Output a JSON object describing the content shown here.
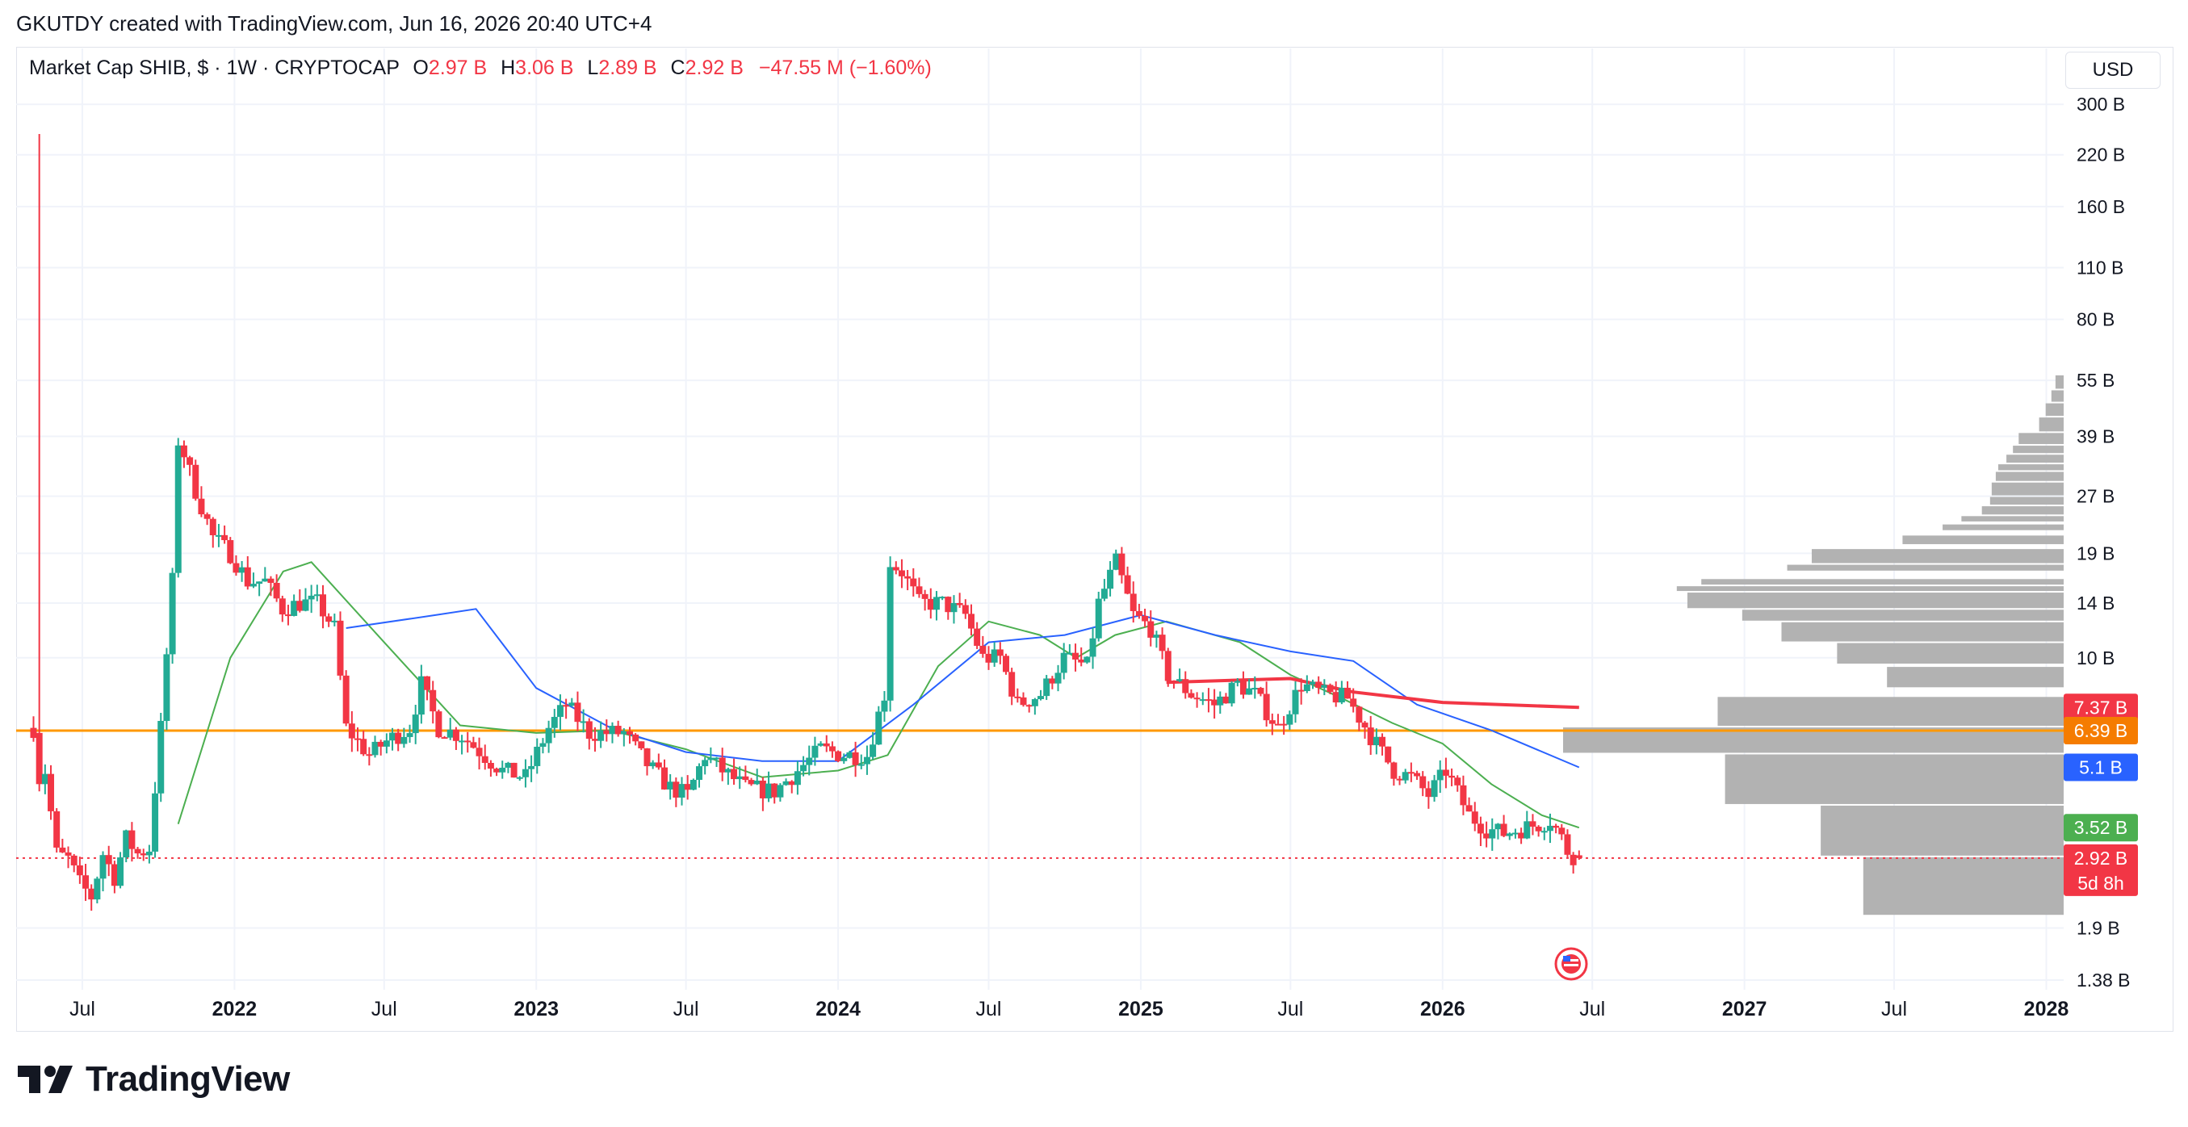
{
  "header": {
    "attribution": "GKUTDY created with TradingView.com, Jun 16, 2026 20:40 UTC+4"
  },
  "legend": {
    "symbol": "Market Cap SHIB, $ · 1W · CRYPTOCAP",
    "o_label": "O",
    "o_value": "2.97 B",
    "h_label": "H",
    "h_value": "3.06 B",
    "l_label": "L",
    "l_value": "2.89 B",
    "c_label": "C",
    "c_value": "2.92 B",
    "change": "−47.55 M (−1.60%)"
  },
  "currency_button": "USD",
  "brand": {
    "name": "TradingView"
  },
  "colors": {
    "up": "#22ab94",
    "down": "#f23645",
    "ma_short": "#4caf50",
    "ma_mid": "#2962ff",
    "ma_long": "#f23645",
    "hline": "#ff9800",
    "volume_profile": "#b2b2b2",
    "grid": "#f0f3fa"
  },
  "chart_data": {
    "type": "candlestick",
    "title": "Market Cap SHIB, $ · 1W · CRYPTOCAP",
    "y_scale": "log",
    "ylim": [
      1.3,
      330
    ],
    "y_unit": "B USD",
    "y_ticks": [
      "300 B",
      "220 B",
      "160 B",
      "110 B",
      "80 B",
      "55 B",
      "39 B",
      "27 B",
      "19 B",
      "14 B",
      "10 B",
      "1.9 B",
      "1.38 B"
    ],
    "y_tick_values": [
      300,
      220,
      160,
      110,
      80,
      55,
      39,
      27,
      19,
      14,
      10,
      1.9,
      1.38
    ],
    "x_ticks": [
      "Jul",
      "2022",
      "Jul",
      "2023",
      "Jul",
      "2024",
      "Jul",
      "2025",
      "Jul",
      "2026",
      "Jul",
      "2027",
      "Jul",
      "2028"
    ],
    "x_tick_dates": [
      "2021-07-01",
      "2022-01-01",
      "2022-07-01",
      "2023-01-01",
      "2023-07-01",
      "2024-01-01",
      "2024-07-01",
      "2025-01-01",
      "2025-07-01",
      "2026-01-01",
      "2026-07-01",
      "2027-01-01",
      "2027-07-01",
      "2028-01-01"
    ],
    "x_bold": [
      false,
      true,
      false,
      true,
      false,
      true,
      false,
      true,
      false,
      true,
      false,
      true,
      false,
      true
    ],
    "x_range": [
      "2021-04-12",
      "2028-01-22"
    ],
    "price_series": [
      {
        "date": "2021-05-03",
        "value": 6.5
      },
      {
        "date": "2021-05-10",
        "value": 250
      },
      {
        "date": "2021-05-17",
        "value": 5.0
      },
      {
        "date": "2021-05-31",
        "value": 3.0
      },
      {
        "date": "2021-06-14",
        "value": 2.9
      },
      {
        "date": "2021-06-28",
        "value": 2.5
      },
      {
        "date": "2021-07-12",
        "value": 2.3
      },
      {
        "date": "2021-07-26",
        "value": 3.0
      },
      {
        "date": "2021-08-09",
        "value": 2.6
      },
      {
        "date": "2021-08-23",
        "value": 3.3
      },
      {
        "date": "2021-09-06",
        "value": 3.0
      },
      {
        "date": "2021-09-20",
        "value": 3.1
      },
      {
        "date": "2021-10-04",
        "value": 6.5
      },
      {
        "date": "2021-10-18",
        "value": 16
      },
      {
        "date": "2021-10-25",
        "value": 38
      },
      {
        "date": "2021-11-01",
        "value": 35
      },
      {
        "date": "2021-11-15",
        "value": 28
      },
      {
        "date": "2021-12-06",
        "value": 21
      },
      {
        "date": "2021-12-27",
        "value": 19
      },
      {
        "date": "2022-01-17",
        "value": 16
      },
      {
        "date": "2022-02-07",
        "value": 16
      },
      {
        "date": "2022-02-28",
        "value": 13.5
      },
      {
        "date": "2022-03-21",
        "value": 14
      },
      {
        "date": "2022-04-11",
        "value": 14
      },
      {
        "date": "2022-05-02",
        "value": 12
      },
      {
        "date": "2022-05-16",
        "value": 6.5
      },
      {
        "date": "2022-06-13",
        "value": 5.5
      },
      {
        "date": "2022-07-04",
        "value": 6.0
      },
      {
        "date": "2022-08-01",
        "value": 6.5
      },
      {
        "date": "2022-08-15",
        "value": 8.5
      },
      {
        "date": "2022-09-05",
        "value": 6.5
      },
      {
        "date": "2022-10-03",
        "value": 6.2
      },
      {
        "date": "2022-11-07",
        "value": 5.3
      },
      {
        "date": "2022-11-21",
        "value": 5.0
      },
      {
        "date": "2022-12-19",
        "value": 4.8
      },
      {
        "date": "2023-01-16",
        "value": 6.5
      },
      {
        "date": "2023-02-06",
        "value": 7.5
      },
      {
        "date": "2023-03-06",
        "value": 6.3
      },
      {
        "date": "2023-04-17",
        "value": 6.3
      },
      {
        "date": "2023-05-15",
        "value": 5.2
      },
      {
        "date": "2023-06-12",
        "value": 4.5
      },
      {
        "date": "2023-07-03",
        "value": 4.3
      },
      {
        "date": "2023-07-24",
        "value": 5.5
      },
      {
        "date": "2023-08-14",
        "value": 5.0
      },
      {
        "date": "2023-09-11",
        "value": 4.5
      },
      {
        "date": "2023-10-16",
        "value": 4.4
      },
      {
        "date": "2023-11-13",
        "value": 5.0
      },
      {
        "date": "2023-12-11",
        "value": 5.7
      },
      {
        "date": "2024-01-08",
        "value": 5.5
      },
      {
        "date": "2024-02-05",
        "value": 5.5
      },
      {
        "date": "2024-02-26",
        "value": 8.0
      },
      {
        "date": "2024-03-04",
        "value": 18
      },
      {
        "date": "2024-03-18",
        "value": 17
      },
      {
        "date": "2024-04-08",
        "value": 14
      },
      {
        "date": "2024-05-06",
        "value": 14
      },
      {
        "date": "2024-06-03",
        "value": 13
      },
      {
        "date": "2024-06-24",
        "value": 10
      },
      {
        "date": "2024-07-15",
        "value": 10
      },
      {
        "date": "2024-08-05",
        "value": 7.5
      },
      {
        "date": "2024-09-02",
        "value": 8.0
      },
      {
        "date": "2024-09-30",
        "value": 10
      },
      {
        "date": "2024-10-28",
        "value": 9.5
      },
      {
        "date": "2024-11-11",
        "value": 14
      },
      {
        "date": "2024-12-02",
        "value": 18
      },
      {
        "date": "2024-12-23",
        "value": 13
      },
      {
        "date": "2025-01-13",
        "value": 12
      },
      {
        "date": "2025-02-03",
        "value": 9.0
      },
      {
        "date": "2025-03-03",
        "value": 8.0
      },
      {
        "date": "2025-03-31",
        "value": 7.5
      },
      {
        "date": "2025-04-28",
        "value": 8.5
      },
      {
        "date": "2025-05-19",
        "value": 8.0
      },
      {
        "date": "2025-06-16",
        "value": 6.5
      },
      {
        "date": "2025-07-14",
        "value": 8.5
      },
      {
        "date": "2025-08-11",
        "value": 8.0
      },
      {
        "date": "2025-09-08",
        "value": 7.8
      },
      {
        "date": "2025-10-06",
        "value": 6.2
      },
      {
        "date": "2025-11-03",
        "value": 5.0
      },
      {
        "date": "2025-11-24",
        "value": 4.8
      },
      {
        "date": "2025-12-15",
        "value": 4.3
      },
      {
        "date": "2026-01-05",
        "value": 5.0
      },
      {
        "date": "2026-02-02",
        "value": 3.8
      },
      {
        "date": "2026-02-23",
        "value": 3.5
      },
      {
        "date": "2026-03-16",
        "value": 3.4
      },
      {
        "date": "2026-04-06",
        "value": 3.5
      },
      {
        "date": "2026-04-27",
        "value": 3.6
      },
      {
        "date": "2026-05-11",
        "value": 3.7
      },
      {
        "date": "2026-05-25",
        "value": 3.3
      },
      {
        "date": "2026-06-01",
        "value": 3.05
      },
      {
        "date": "2026-06-08",
        "value": 2.97
      },
      {
        "date": "2026-06-15",
        "value": 2.92
      }
    ],
    "moving_averages": [
      {
        "color": "#4caf50",
        "points": [
          {
            "date": "2021-10-25",
            "value": 3.6
          },
          {
            "date": "2021-12-27",
            "value": 10
          },
          {
            "date": "2022-03-01",
            "value": 17
          },
          {
            "date": "2022-04-04",
            "value": 18
          },
          {
            "date": "2022-07-01",
            "value": 11
          },
          {
            "date": "2022-10-01",
            "value": 6.6
          },
          {
            "date": "2023-01-01",
            "value": 6.3
          },
          {
            "date": "2023-04-01",
            "value": 6.4
          },
          {
            "date": "2023-07-01",
            "value": 5.7
          },
          {
            "date": "2023-10-01",
            "value": 4.8
          },
          {
            "date": "2024-01-01",
            "value": 5.0
          },
          {
            "date": "2024-03-01",
            "value": 5.5
          },
          {
            "date": "2024-05-01",
            "value": 9.5
          },
          {
            "date": "2024-07-01",
            "value": 12.5
          },
          {
            "date": "2024-09-01",
            "value": 11.5
          },
          {
            "date": "2024-10-15",
            "value": 10
          },
          {
            "date": "2024-12-01",
            "value": 11.5
          },
          {
            "date": "2025-02-01",
            "value": 12.5
          },
          {
            "date": "2025-05-01",
            "value": 11
          },
          {
            "date": "2025-07-01",
            "value": 9
          },
          {
            "date": "2025-09-01",
            "value": 7.8
          },
          {
            "date": "2025-11-01",
            "value": 6.7
          },
          {
            "date": "2026-01-01",
            "value": 5.9
          },
          {
            "date": "2026-03-01",
            "value": 4.6
          },
          {
            "date": "2026-05-01",
            "value": 3.8
          },
          {
            "date": "2026-06-15",
            "value": 3.52
          }
        ]
      },
      {
        "color": "#2962ff",
        "points": [
          {
            "date": "2022-05-16",
            "value": 12
          },
          {
            "date": "2022-09-01",
            "value": 13
          },
          {
            "date": "2022-10-20",
            "value": 13.5
          },
          {
            "date": "2023-01-01",
            "value": 8.3
          },
          {
            "date": "2023-04-01",
            "value": 6.5
          },
          {
            "date": "2023-07-01",
            "value": 5.6
          },
          {
            "date": "2023-10-01",
            "value": 5.3
          },
          {
            "date": "2024-01-01",
            "value": 5.3
          },
          {
            "date": "2024-04-01",
            "value": 7.5
          },
          {
            "date": "2024-07-01",
            "value": 11
          },
          {
            "date": "2024-10-01",
            "value": 11.5
          },
          {
            "date": "2025-01-01",
            "value": 13
          },
          {
            "date": "2025-04-01",
            "value": 11.5
          },
          {
            "date": "2025-07-01",
            "value": 10.4
          },
          {
            "date": "2025-09-15",
            "value": 9.8
          },
          {
            "date": "2025-12-01",
            "value": 7.5
          },
          {
            "date": "2026-03-01",
            "value": 6.4
          },
          {
            "date": "2026-06-15",
            "value": 5.1
          }
        ]
      },
      {
        "color": "#f23645",
        "points": [
          {
            "date": "2025-02-01",
            "value": 8.6
          },
          {
            "date": "2025-07-01",
            "value": 8.8
          },
          {
            "date": "2025-09-15",
            "value": 8.1
          },
          {
            "date": "2026-01-01",
            "value": 7.6
          },
          {
            "date": "2026-06-15",
            "value": 7.37
          }
        ]
      }
    ],
    "horizontal_line": {
      "value": 6.39,
      "label": "6.39 B",
      "color": "#ff9800"
    },
    "last_price_line": {
      "value": 2.92,
      "label": "2.92 B",
      "countdown": "5d 8h",
      "color": "#f23645"
    },
    "price_labels": [
      {
        "value": 7.37,
        "label": "7.37 B",
        "color": "#f23645"
      },
      {
        "value": 6.39,
        "label": "6.39 B",
        "color": "#f57c00"
      },
      {
        "value": 5.1,
        "label": "5.1 B",
        "color": "#2962ff"
      },
      {
        "value": 3.52,
        "label": "3.52 B",
        "color": "#4caf50"
      },
      {
        "value": 2.92,
        "label": "2.92 B",
        "countdown": "5d 8h",
        "color": "#f23645"
      }
    ],
    "volume_profile": [
      {
        "low": 2.05,
        "high": 2.95,
        "share": 0.245
      },
      {
        "low": 2.95,
        "high": 4.05,
        "share": 0.297
      },
      {
        "low": 4.05,
        "high": 5.55,
        "share": 0.414
      },
      {
        "low": 5.55,
        "high": 6.55,
        "share": 0.612
      },
      {
        "low": 6.55,
        "high": 7.9,
        "share": 0.423
      },
      {
        "low": 8.3,
        "high": 9.5,
        "share": 0.216
      },
      {
        "low": 9.6,
        "high": 11.0,
        "share": 0.277
      },
      {
        "low": 11.0,
        "high": 12.5,
        "share": 0.345
      },
      {
        "low": 12.5,
        "high": 13.5,
        "share": 0.393
      },
      {
        "low": 13.5,
        "high": 15.0,
        "share": 0.46
      },
      {
        "low": 15.0,
        "high": 15.6,
        "share": 0.473
      },
      {
        "low": 15.6,
        "high": 16.3,
        "share": 0.443
      },
      {
        "low": 17.0,
        "high": 17.8,
        "share": 0.338
      },
      {
        "low": 17.8,
        "high": 19.6,
        "share": 0.308
      },
      {
        "low": 20.0,
        "high": 21.3,
        "share": 0.197
      },
      {
        "low": 21.8,
        "high": 22.8,
        "share": 0.148
      },
      {
        "low": 23.0,
        "high": 24.0,
        "share": 0.125
      },
      {
        "low": 24.0,
        "high": 25.5,
        "share": 0.1
      },
      {
        "low": 25.5,
        "high": 27.0,
        "share": 0.09
      },
      {
        "low": 27.0,
        "high": 29.5,
        "share": 0.088
      },
      {
        "low": 29.5,
        "high": 31.5,
        "share": 0.083
      },
      {
        "low": 31.5,
        "high": 33.0,
        "share": 0.08
      },
      {
        "low": 33.0,
        "high": 35.0,
        "share": 0.07
      },
      {
        "low": 35.0,
        "high": 37.0,
        "share": 0.062
      },
      {
        "low": 37.0,
        "high": 40.0,
        "share": 0.055
      },
      {
        "low": 40.0,
        "high": 44.0,
        "share": 0.03
      },
      {
        "low": 44.0,
        "high": 48.0,
        "share": 0.022
      },
      {
        "low": 48.0,
        "high": 52.0,
        "share": 0.015
      },
      {
        "low": 52.0,
        "high": 57.0,
        "share": 0.01
      }
    ]
  }
}
